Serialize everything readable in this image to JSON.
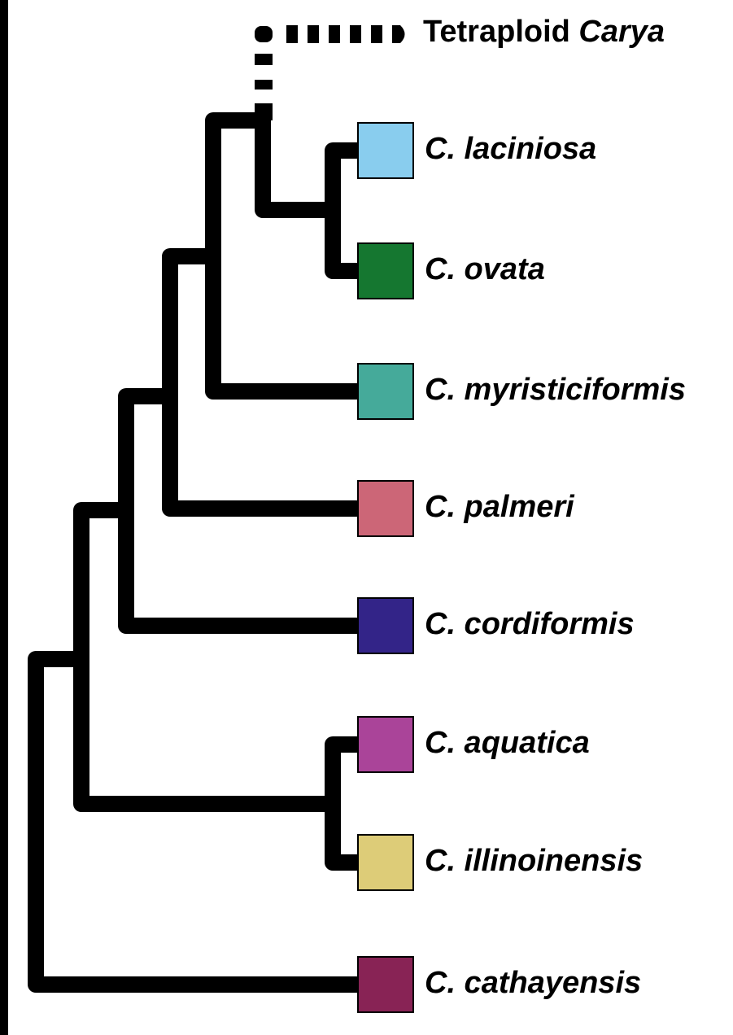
{
  "tree": {
    "tetraploid_label": {
      "prefix": "Tetraploid",
      "genus": "Carya"
    },
    "taxa": [
      {
        "id": "laciniosa",
        "label": "C. laciniosa",
        "color": "#89CDEE"
      },
      {
        "id": "ovata",
        "label": "C. ovata",
        "color": "#157730"
      },
      {
        "id": "myristiciformis",
        "label": "C. myristiciformis",
        "color": "#45AA9A"
      },
      {
        "id": "palmeri",
        "label": "C. palmeri",
        "color": "#CC6677"
      },
      {
        "id": "cordiformis",
        "label": "C. cordiformis",
        "color": "#332488"
      },
      {
        "id": "aquatica",
        "label": "C. aquatica",
        "color": "#AA4499"
      },
      {
        "id": "illinoinensis",
        "label": "C. illinoinensis",
        "color": "#DDCC78"
      },
      {
        "id": "cathayensis",
        "label": "C. cathayensis",
        "color": "#882355"
      }
    ],
    "branch_color": "#000000"
  }
}
